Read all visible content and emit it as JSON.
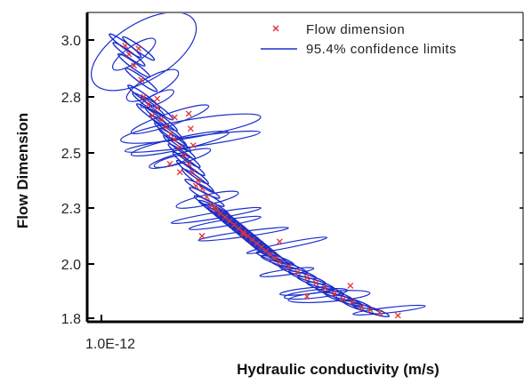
{
  "chart_data": {
    "type": "scatter",
    "title": "",
    "xlabel": "Hydraulic  conductivity  (m/s)",
    "ylabel": "Flow Dimension",
    "x_scale": "log",
    "xlim": [
      1e-12,
      1e-05
    ],
    "ylim": [
      1.8,
      3.1
    ],
    "x_tick_labels": [
      {
        "value": 1e-12,
        "label": "1.0E-12"
      }
    ],
    "y_tick_labels": [
      {
        "value": 3.0,
        "label": "3.0"
      },
      {
        "value": 2.8,
        "label": "2.8"
      },
      {
        "value": 2.5,
        "label": "2.5"
      },
      {
        "value": 2.3,
        "label": "2.3"
      },
      {
        "value": 2.0,
        "label": "2.0"
      },
      {
        "value": 1.8,
        "label": "1.8"
      }
    ],
    "grid": false,
    "legend_position": "top-right",
    "series": [
      {
        "name": "Flow  dimension",
        "marker": "x",
        "color": "#e03030",
        "points": [
          [
            2e-12,
            2.98
          ],
          [
            2.2e-12,
            2.95
          ],
          [
            2.5e-12,
            2.91
          ],
          [
            2.8e-12,
            2.97
          ],
          [
            3e-12,
            2.86
          ],
          [
            3.2e-12,
            2.8
          ],
          [
            3.6e-12,
            2.76
          ],
          [
            4e-12,
            2.7
          ],
          [
            4.5e-12,
            2.74
          ],
          [
            5e-12,
            2.68
          ],
          [
            5.6e-12,
            2.64
          ],
          [
            6.3e-12,
            2.6
          ],
          [
            7e-12,
            2.57
          ],
          [
            7.9e-12,
            2.53
          ],
          [
            8.9e-12,
            2.49
          ],
          [
            1e-11,
            2.46
          ],
          [
            1.1e-11,
            2.43
          ],
          [
            1.26e-11,
            2.4
          ],
          [
            1.41e-11,
            2.37
          ],
          [
            1.58e-11,
            2.34
          ],
          [
            1.78e-11,
            2.31
          ],
          [
            2e-11,
            2.29
          ],
          [
            2.24e-11,
            2.27
          ],
          [
            2.51e-11,
            2.25
          ],
          [
            2.82e-11,
            2.23
          ],
          [
            3.16e-11,
            2.21
          ],
          [
            3.55e-11,
            2.19
          ],
          [
            3.98e-11,
            2.17
          ],
          [
            4.47e-11,
            2.15
          ],
          [
            5.01e-11,
            2.13
          ],
          [
            5.62e-11,
            2.11
          ],
          [
            6.31e-11,
            2.09
          ],
          [
            7.08e-11,
            2.07
          ],
          [
            7.94e-11,
            2.05
          ],
          [
            8.91e-11,
            2.03
          ],
          [
            1e-10,
            2.01
          ],
          [
            1.26e-10,
            1.99
          ],
          [
            1.58e-10,
            1.97
          ],
          [
            2e-10,
            1.95
          ],
          [
            2.51e-10,
            1.93
          ],
          [
            3.16e-10,
            1.91
          ],
          [
            3.98e-10,
            1.89
          ],
          [
            5.01e-10,
            1.87
          ],
          [
            6.31e-10,
            1.86
          ],
          [
            7.94e-10,
            1.84
          ],
          [
            1e-09,
            1.83
          ],
          [
            1.26e-09,
            1.82
          ],
          [
            2e-09,
            1.81
          ],
          [
            4.5e-12,
            2.79
          ],
          [
            7e-12,
            2.69
          ],
          [
            1e-11,
            2.71
          ],
          [
            1.05e-11,
            2.63
          ],
          [
            1.12e-11,
            2.54
          ],
          [
            1.2e-11,
            2.38
          ],
          [
            1.4e-11,
            2.15
          ],
          [
            6.2e-12,
            2.46
          ],
          [
            8e-12,
            2.43
          ],
          [
            1.9e-11,
            2.3
          ],
          [
            4e-11,
            2.16
          ],
          [
            1e-10,
            2.12
          ],
          [
            2e-10,
            1.88
          ],
          [
            4e-10,
            1.89
          ],
          [
            6e-10,
            1.92
          ]
        ]
      },
      {
        "name": "95.4%  confidence  limits",
        "marker": "ellipse",
        "color": "#1a2ecc",
        "ellipses": [
          {
            "cx": 3.2e-12,
            "cy": 2.96,
            "rx_dec": 0.65,
            "ry": 0.28,
            "angle": -1.0
          },
          {
            "cx": 2.5e-12,
            "cy": 2.95,
            "rx_dec": 0.28,
            "ry": 0.08,
            "angle": -1.1
          },
          {
            "cx": 4e-12,
            "cy": 2.84,
            "rx_dec": 0.32,
            "ry": 0.09,
            "angle": -0.9
          },
          {
            "cx": 4.5e-12,
            "cy": 2.79,
            "rx_dec": 0.2,
            "ry": 0.05,
            "angle": -0.8
          },
          {
            "cx": 6.2e-12,
            "cy": 2.68,
            "rx_dec": 0.45,
            "ry": 0.06,
            "angle": -0.6
          },
          {
            "cx": 1.05e-11,
            "cy": 2.63,
            "rx_dec": 0.78,
            "ry": 0.09,
            "angle": -0.3
          },
          {
            "cx": 1.1e-11,
            "cy": 2.56,
            "rx_dec": 0.75,
            "ry": 0.05,
            "angle": -0.25
          },
          {
            "cx": 8e-12,
            "cy": 2.55,
            "rx_dec": 0.55,
            "ry": 0.06,
            "angle": -0.4
          },
          {
            "cx": 8e-12,
            "cy": 2.48,
            "rx_dec": 0.35,
            "ry": 0.05,
            "angle": -0.5
          },
          {
            "cx": 6.5e-12,
            "cy": 2.47,
            "rx_dec": 0.2,
            "ry": 0.04,
            "angle": -0.5
          },
          {
            "cx": 1.6e-11,
            "cy": 2.33,
            "rx_dec": 0.35,
            "ry": 0.05,
            "angle": -0.4
          },
          {
            "cx": 2e-11,
            "cy": 2.26,
            "rx_dec": 0.5,
            "ry": 0.03,
            "angle": -0.3
          },
          {
            "cx": 2.5e-11,
            "cy": 2.22,
            "rx_dec": 0.4,
            "ry": 0.03,
            "angle": -0.3
          },
          {
            "cx": 4e-11,
            "cy": 2.16,
            "rx_dec": 0.5,
            "ry": 0.02,
            "angle": -0.25
          },
          {
            "cx": 1.2e-10,
            "cy": 2.1,
            "rx_dec": 0.45,
            "ry": 0.025,
            "angle": -0.35
          },
          {
            "cx": 1.2e-10,
            "cy": 1.97,
            "rx_dec": 0.3,
            "ry": 0.02,
            "angle": -0.25
          },
          {
            "cx": 2.5e-10,
            "cy": 1.89,
            "rx_dec": 0.35,
            "ry": 0.04,
            "angle": -0.2
          },
          {
            "cx": 3.5e-10,
            "cy": 1.88,
            "rx_dec": 0.45,
            "ry": 0.05,
            "angle": -0.15
          },
          {
            "cx": 2e-10,
            "cy": 1.9,
            "rx_dec": 0.3,
            "ry": 0.03,
            "angle": -0.2
          },
          {
            "cx": 1.6e-09,
            "cy": 1.83,
            "rx_dec": 0.4,
            "ry": 0.02,
            "angle": -0.2
          }
        ]
      }
    ]
  }
}
